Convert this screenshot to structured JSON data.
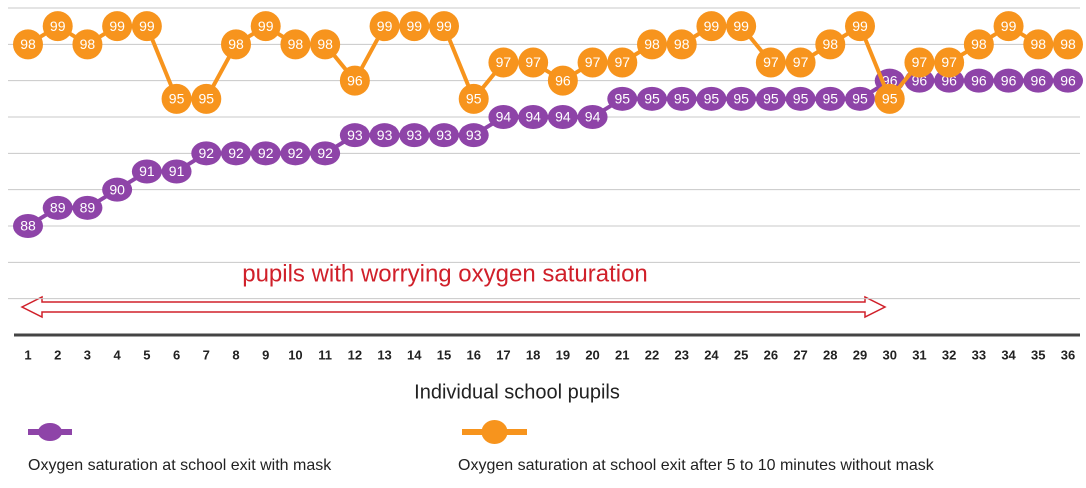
{
  "chart_data": {
    "type": "line",
    "x_label": "Individual school pupils",
    "annotation": "pupils with worrying oxygen saturation",
    "x": [
      1,
      2,
      3,
      4,
      5,
      6,
      7,
      8,
      9,
      10,
      11,
      12,
      13,
      14,
      15,
      16,
      17,
      18,
      19,
      20,
      21,
      22,
      23,
      24,
      25,
      26,
      27,
      28,
      29,
      30,
      31,
      32,
      33,
      34,
      35,
      36
    ],
    "xlim": [
      1,
      36
    ],
    "series": [
      {
        "name": "Oxygen saturation at school exit with mask",
        "color": "#8e44a8",
        "values": [
          88,
          89,
          89,
          90,
          91,
          91,
          92,
          92,
          92,
          92,
          92,
          93,
          93,
          93,
          93,
          93,
          94,
          94,
          94,
          94,
          95,
          95,
          95,
          95,
          95,
          95,
          95,
          95,
          95,
          96,
          96,
          96,
          96,
          96,
          96,
          96
        ]
      },
      {
        "name": "Oxygen saturation at school exit after 5  to 10  minutes without mask",
        "color": "#f7941d",
        "values": [
          98,
          99,
          98,
          99,
          99,
          95,
          95,
          98,
          99,
          98,
          98,
          96,
          99,
          99,
          99,
          95,
          97,
          97,
          96,
          97,
          97,
          98,
          98,
          99,
          99,
          97,
          97,
          98,
          99,
          95,
          97,
          97,
          98,
          99,
          98,
          98
        ]
      }
    ],
    "ylim": [
      82,
      100
    ],
    "yticks": [
      84,
      86,
      88,
      90,
      92,
      94,
      96,
      98,
      100
    ],
    "ytick_labels": false,
    "grid": true
  }
}
